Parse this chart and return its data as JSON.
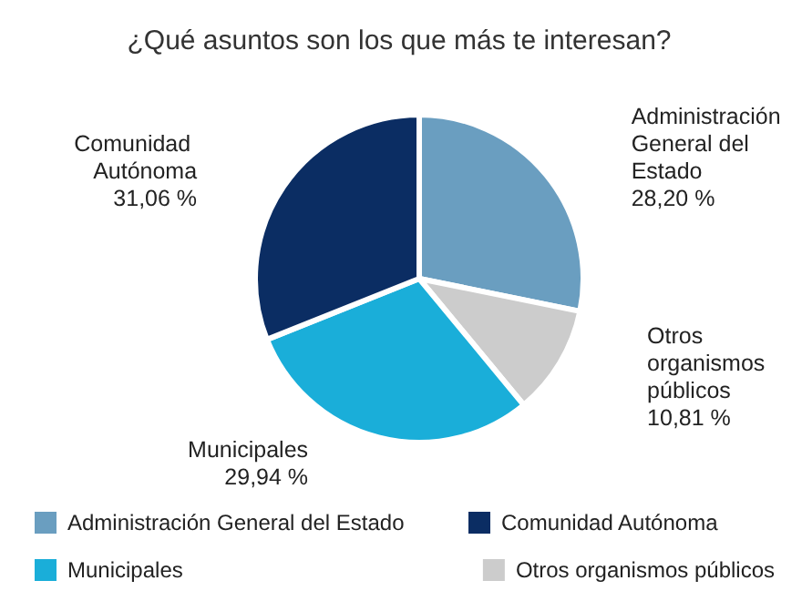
{
  "chart_data": {
    "type": "pie",
    "title": "¿Qué asuntos son los que más te interesan?",
    "categories": [
      "Administración General del Estado",
      "Otros organismos públicos",
      "Municipales",
      "Comunidad Autónoma"
    ],
    "values": [
      28.2,
      10.81,
      29.94,
      31.06
    ],
    "colors": [
      "#6a9ec0",
      "#cccccc",
      "#1aaed9",
      "#0b2d63"
    ],
    "value_labels": [
      "28,20 %",
      "10,81 %",
      "29,94 %",
      "31,06 %"
    ],
    "legend": "bottom"
  }
}
